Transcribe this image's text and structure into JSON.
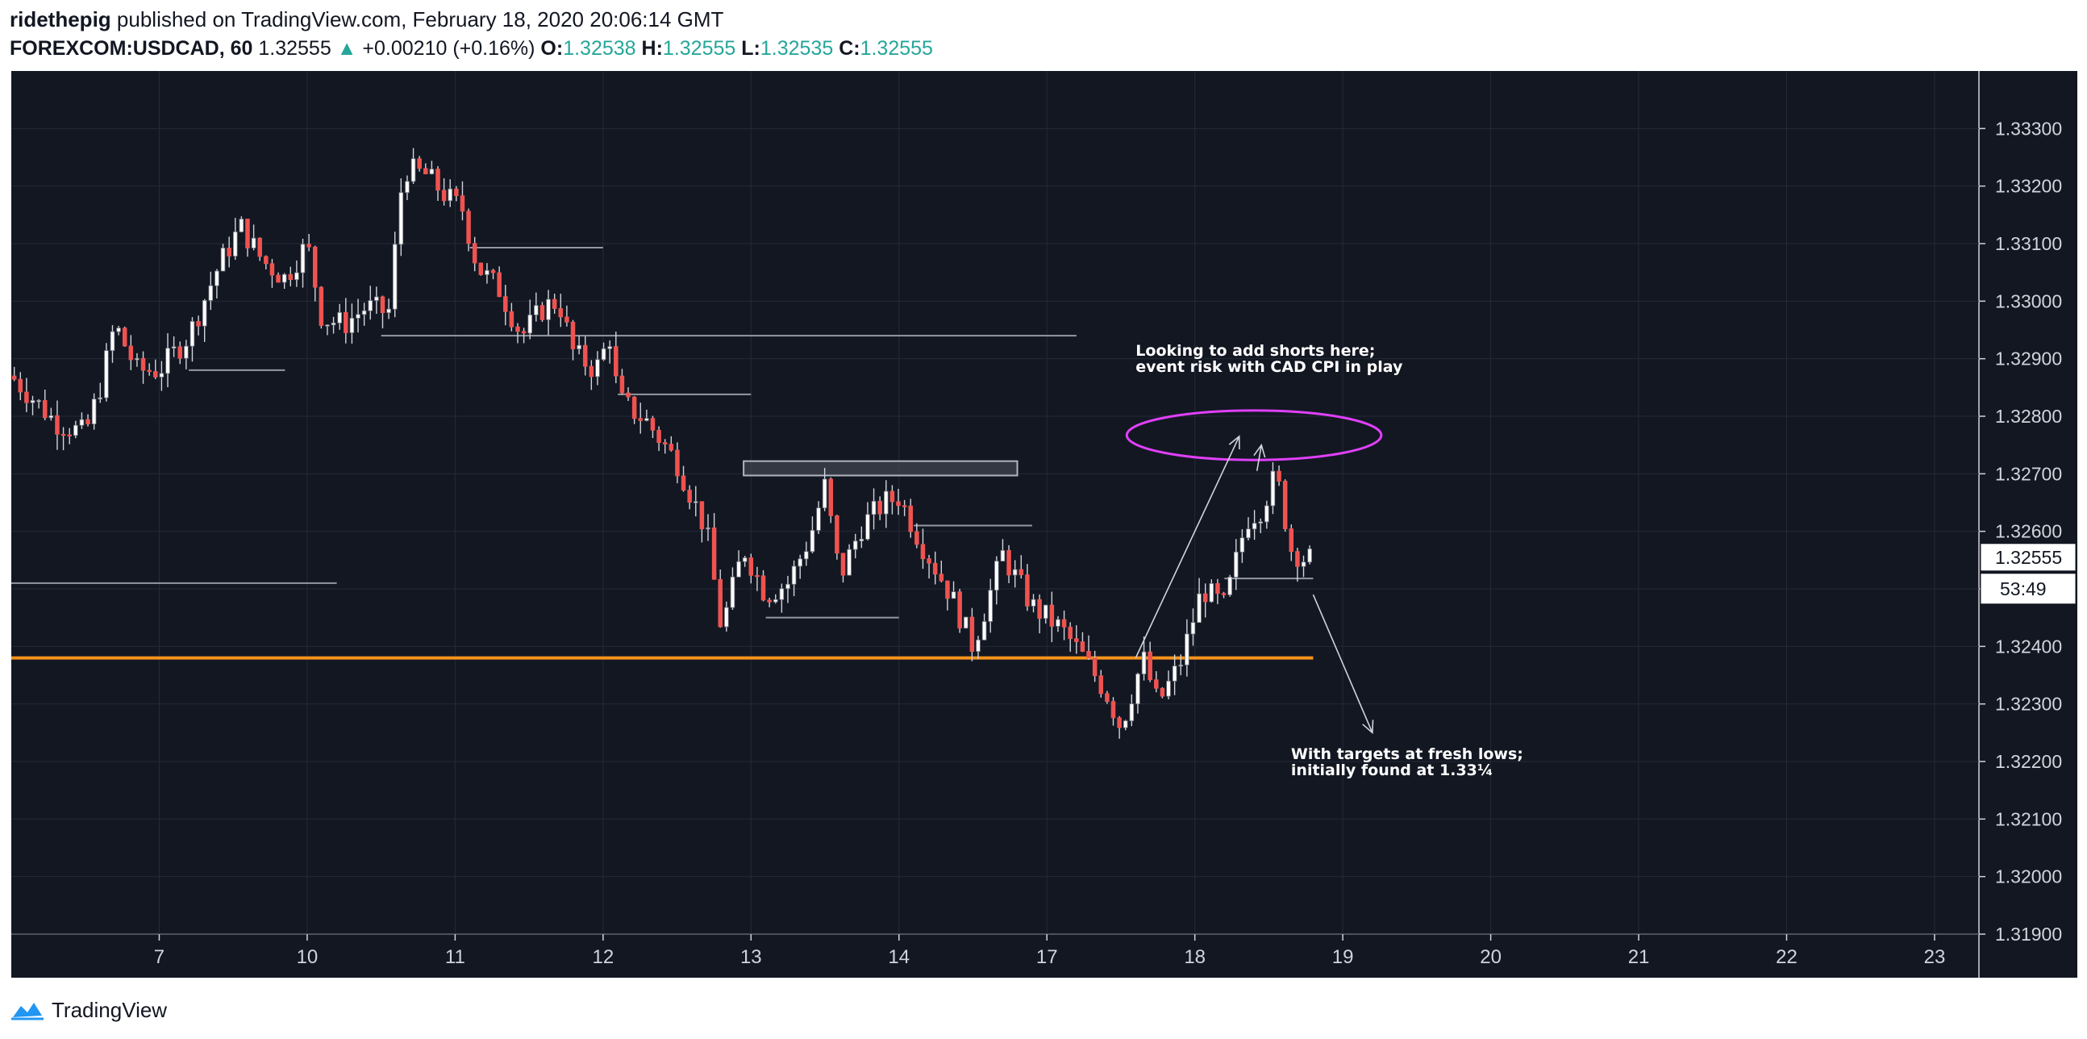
{
  "header": {
    "author": "ridethepig",
    "published_text": "published on TradingView.com, February 18, 2020 20:06:14 GMT",
    "symbol": "FOREXCOM:USDCAD, 60",
    "last_price": "1.32555",
    "change_arrow": "▲",
    "change": "+0.00210 (+0.16%)",
    "open_label": "O:",
    "open": "1.32538",
    "high_label": "H:",
    "high": "1.32555",
    "low_label": "L:",
    "low": "1.32535",
    "close_label": "C:",
    "close": "1.32555"
  },
  "footer": {
    "brand": "TradingView",
    "logo_icon": "tradingview-logo-icon"
  },
  "colors": {
    "background": "#131722",
    "grid": "#242a38",
    "up_body": "#ffffff",
    "down_body": "#ef5350",
    "wick": "#d1d4dc",
    "support_line": "#f7931a",
    "ellipse": "#e040fb",
    "annotation_text": "#ffffff",
    "axis_text": "#d1d4dc"
  },
  "chart_data": {
    "type": "candlestick",
    "symbol": "FOREXCOM:USDCAD",
    "interval": "60",
    "ylim": [
      1.319,
      1.334
    ],
    "y_ticks": [
      "1.33300",
      "1.33200",
      "1.33100",
      "1.33000",
      "1.32900",
      "1.32800",
      "1.32700",
      "1.32600",
      "1.32500",
      "1.32400",
      "1.32300",
      "1.32200",
      "1.32100",
      "1.32000",
      "1.31900"
    ],
    "x_labels": [
      "7",
      "10",
      "11",
      "12",
      "13",
      "14",
      "17",
      "18",
      "19",
      "20",
      "21",
      "22",
      "23"
    ],
    "x_label_positions": [
      1,
      2,
      3,
      4,
      5,
      6,
      7,
      8,
      9,
      10,
      11,
      12,
      13
    ],
    "x_range": [
      0.0,
      13.3
    ],
    "price_label": "1.32555",
    "countdown_label": "53:49",
    "price_path": [
      [
        0.0,
        1.3287
      ],
      [
        0.3,
        1.3279
      ],
      [
        0.5,
        1.3277
      ],
      [
        0.6,
        1.3285
      ],
      [
        0.7,
        1.3296
      ],
      [
        0.85,
        1.3288
      ],
      [
        1.0,
        1.3288
      ],
      [
        1.2,
        1.3294
      ],
      [
        1.4,
        1.3306
      ],
      [
        1.55,
        1.3313
      ],
      [
        1.7,
        1.3307
      ],
      [
        1.85,
        1.3304
      ],
      [
        2.0,
        1.331
      ],
      [
        2.1,
        1.3297
      ],
      [
        2.25,
        1.3296
      ],
      [
        2.4,
        1.3299
      ],
      [
        2.55,
        1.3298
      ],
      [
        2.65,
        1.3323
      ],
      [
        2.8,
        1.3322
      ],
      [
        2.95,
        1.3318
      ],
      [
        3.05,
        1.3316
      ],
      [
        3.15,
        1.3306
      ],
      [
        3.3,
        1.3302
      ],
      [
        3.45,
        1.3294
      ],
      [
        3.6,
        1.3299
      ],
      [
        3.7,
        1.33
      ],
      [
        3.8,
        1.3291
      ],
      [
        3.95,
        1.3288
      ],
      [
        4.05,
        1.3294
      ],
      [
        4.1,
        1.3283
      ],
      [
        4.3,
        1.3279
      ],
      [
        4.5,
        1.3272
      ],
      [
        4.7,
        1.326
      ],
      [
        4.8,
        1.3243
      ],
      [
        4.95,
        1.3257
      ],
      [
        5.1,
        1.3249
      ],
      [
        5.25,
        1.3251
      ],
      [
        5.4,
        1.3259
      ],
      [
        5.5,
        1.3268
      ],
      [
        5.6,
        1.3252
      ],
      [
        5.75,
        1.3261
      ],
      [
        5.9,
        1.3265
      ],
      [
        6.0,
        1.3266
      ],
      [
        6.15,
        1.3258
      ],
      [
        6.35,
        1.3249
      ],
      [
        6.5,
        1.324
      ],
      [
        6.7,
        1.3256
      ],
      [
        6.9,
        1.3247
      ],
      [
        7.1,
        1.3243
      ],
      [
        7.25,
        1.3238
      ],
      [
        7.4,
        1.3232
      ],
      [
        7.5,
        1.3226
      ],
      [
        7.65,
        1.3238
      ],
      [
        7.75,
        1.323
      ],
      [
        7.9,
        1.3237
      ],
      [
        8.05,
        1.325
      ],
      [
        8.2,
        1.3247
      ],
      [
        8.35,
        1.3262
      ],
      [
        8.45,
        1.3264
      ],
      [
        8.55,
        1.327
      ],
      [
        8.65,
        1.3257
      ],
      [
        8.75,
        1.3255
      ],
      [
        8.8,
        1.32555
      ]
    ],
    "horizontal_levels": [
      {
        "name": "level-1.3238-orange",
        "price": 1.3238,
        "x_start": 0.0,
        "x_end": 8.8
      },
      {
        "name": "level-1.3294-gray",
        "price": 1.3294,
        "x_start": 2.5,
        "x_end": 7.2
      },
      {
        "name": "level-1.3309-gray",
        "price": 1.33093,
        "x_start": 3.1,
        "x_end": 4.0
      },
      {
        "name": "level-1.3288-gray",
        "price": 1.3288,
        "x_start": 1.2,
        "x_end": 1.85
      },
      {
        "name": "level-1.3284-gray",
        "price": 1.32838,
        "x_start": 4.1,
        "x_end": 5.0
      },
      {
        "name": "level-1.3261-gray",
        "price": 1.3261,
        "x_start": 6.1,
        "x_end": 6.9
      },
      {
        "name": "level-1.3245-gray",
        "price": 1.3245,
        "x_start": 5.1,
        "x_end": 6.0
      },
      {
        "name": "level-1.3252-gray",
        "price": 1.32518,
        "x_start": 8.2,
        "x_end": 8.8
      },
      {
        "name": "level-1.3251-left",
        "price": 1.3251,
        "x_start": 0.0,
        "x_end": 2.2
      }
    ],
    "zone": {
      "price_top": 1.32722,
      "price_bottom": 1.32697,
      "x_start": 4.95,
      "x_end": 6.8
    },
    "ellipse": {
      "cx": 8.4,
      "cy": 1.32767,
      "rx": 0.86,
      "ry": 0.00043
    },
    "arrows": [
      {
        "name": "up-projection-arrow",
        "from": [
          7.6,
          1.3238
        ],
        "to": [
          8.3,
          1.32765
        ]
      },
      {
        "name": "peak-to-dip-arrow",
        "from": [
          8.42,
          1.32705
        ],
        "to": [
          8.45,
          1.3275
        ]
      },
      {
        "name": "down-projection-arrow",
        "from": [
          8.8,
          1.3249
        ],
        "to": [
          9.2,
          1.3225
        ]
      }
    ],
    "annotations": [
      {
        "name": "annotation-add-shorts",
        "lines": [
          "Looking to add shorts here;",
          "event risk with CAD CPI in play"
        ],
        "x": 7.6,
        "y": 1.32905
      },
      {
        "name": "annotation-targets",
        "lines": [
          "With targets at fresh lows;",
          "initially found at 1.33¼"
        ],
        "x": 8.65,
        "y": 1.32204
      }
    ]
  }
}
